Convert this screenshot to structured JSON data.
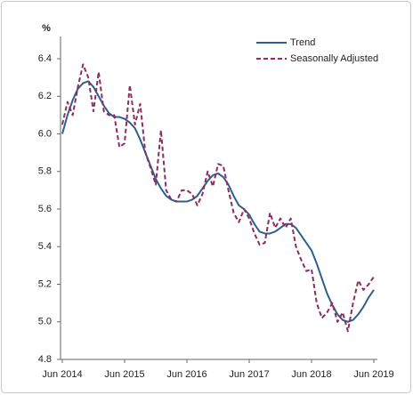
{
  "chart_data": {
    "type": "line",
    "y_label": "%",
    "categories": [
      "Jun 2014",
      null,
      null,
      null,
      null,
      null,
      null,
      null,
      null,
      null,
      null,
      null,
      "Jun 2015",
      null,
      null,
      null,
      null,
      null,
      null,
      null,
      null,
      null,
      null,
      null,
      "Jun 2016",
      null,
      null,
      null,
      null,
      null,
      null,
      null,
      null,
      null,
      null,
      null,
      "Jun 2017",
      null,
      null,
      null,
      null,
      null,
      null,
      null,
      null,
      null,
      null,
      null,
      "Jun 2018",
      null,
      null,
      null,
      null,
      null,
      null,
      null,
      null,
      null,
      null,
      null,
      "Jun 2019"
    ],
    "series": [
      {
        "name": "Trend",
        "color": "#2f5f8f",
        "line_style": "solid",
        "values": [
          6.0,
          6.1,
          6.18,
          6.24,
          6.27,
          6.28,
          6.25,
          6.2,
          6.15,
          6.11,
          6.09,
          6.09,
          6.08,
          6.06,
          6.03,
          5.97,
          5.9,
          5.83,
          5.76,
          5.71,
          5.67,
          5.65,
          5.64,
          5.64,
          5.64,
          5.65,
          5.67,
          5.71,
          5.75,
          5.78,
          5.79,
          5.77,
          5.73,
          5.67,
          5.62,
          5.6,
          5.57,
          5.52,
          5.48,
          5.47,
          5.47,
          5.48,
          5.5,
          5.52,
          5.52,
          5.5,
          5.46,
          5.42,
          5.38,
          5.31,
          5.23,
          5.15,
          5.09,
          5.04,
          5.01,
          5.0,
          5.01,
          5.04,
          5.08,
          5.13,
          5.17
        ]
      },
      {
        "name": "Seasonally Adjusted",
        "color": "#8c2d60",
        "line_style": "dashed",
        "values": [
          6.05,
          6.17,
          6.1,
          6.25,
          6.37,
          6.3,
          6.12,
          6.33,
          6.12,
          6.1,
          6.1,
          5.93,
          5.95,
          6.26,
          6.05,
          6.16,
          5.9,
          5.82,
          5.73,
          6.02,
          5.7,
          5.65,
          5.64,
          5.7,
          5.7,
          5.68,
          5.62,
          5.68,
          5.8,
          5.72,
          5.84,
          5.83,
          5.7,
          5.58,
          5.53,
          5.6,
          5.55,
          5.47,
          5.41,
          5.42,
          5.58,
          5.5,
          5.55,
          5.5,
          5.55,
          5.4,
          5.33,
          5.27,
          5.28,
          5.1,
          5.02,
          5.05,
          5.1,
          5.0,
          5.05,
          4.95,
          5.1,
          5.22,
          5.17,
          5.2,
          5.24
        ]
      }
    ],
    "ylim": [
      4.8,
      6.5
    ],
    "yticks": [
      {
        "value": 4.8,
        "label": "4.8"
      },
      {
        "value": 5.0,
        "label": "5.0"
      },
      {
        "value": 5.2,
        "label": "5.2"
      },
      {
        "value": 5.4,
        "label": "5.4"
      },
      {
        "value": 5.6,
        "label": "5.6"
      },
      {
        "value": 5.8,
        "label": "5.8"
      },
      {
        "value": 6.0,
        "label": "6.0"
      },
      {
        "value": 6.2,
        "label": "6.2"
      },
      {
        "value": 6.4,
        "label": "6.4"
      }
    ],
    "grid": false,
    "legend_position": "top-right"
  }
}
